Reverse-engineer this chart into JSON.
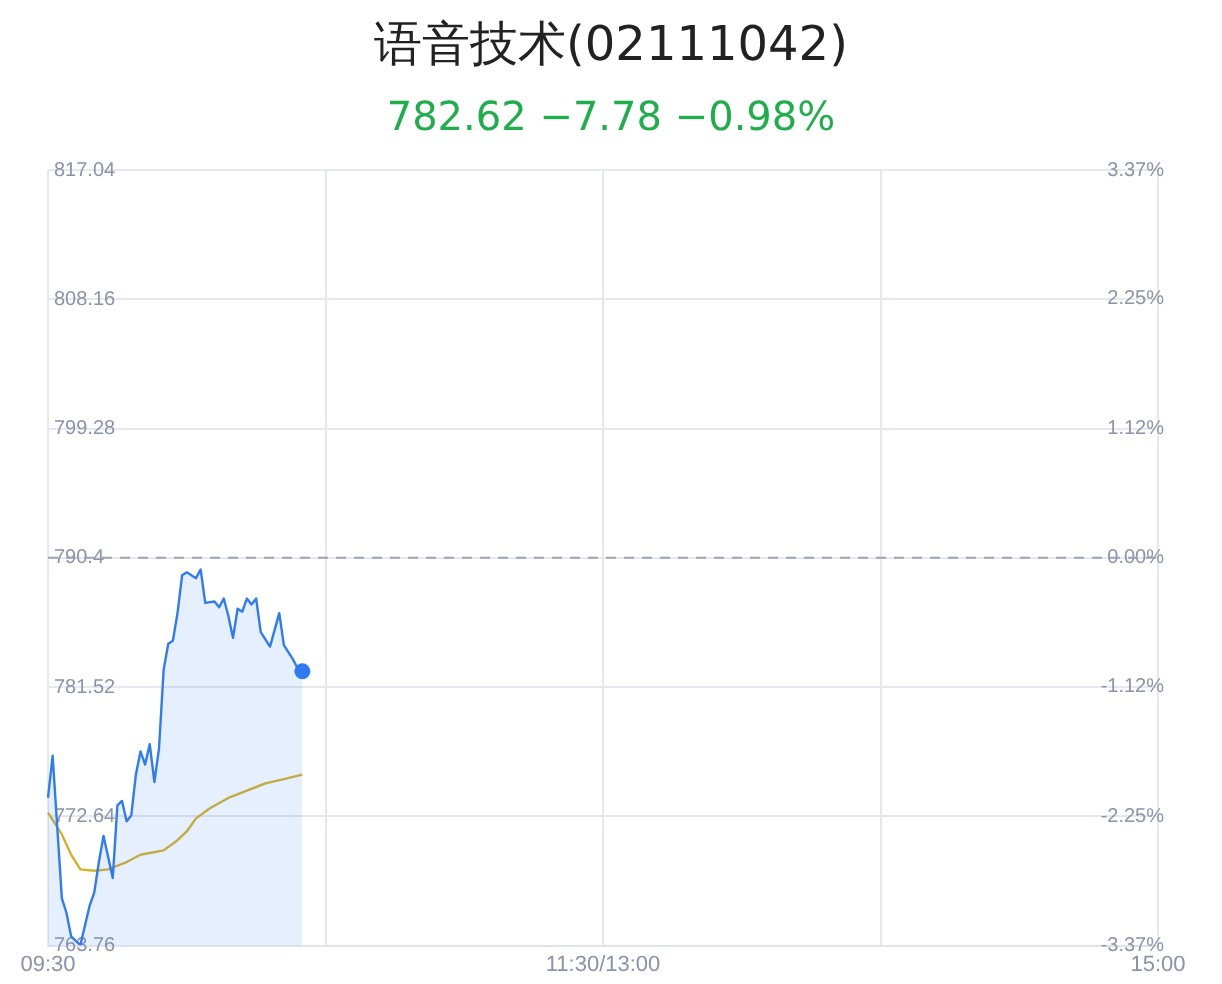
{
  "chart_data": {
    "type": "line",
    "title": "语音技术(02111042)",
    "subtitle": "782.62 −7.78 −0.98%",
    "categories": [
      "09:30",
      null,
      null,
      null,
      null,
      null,
      null,
      null,
      null,
      null,
      null,
      null,
      null,
      null,
      null,
      null,
      null,
      null,
      null,
      null,
      null,
      null,
      null,
      null,
      null,
      null,
      null,
      null,
      null,
      null,
      null,
      null,
      null,
      null,
      null,
      null,
      null,
      null,
      null,
      null,
      null,
      null,
      null,
      null,
      null,
      null,
      null,
      null,
      null,
      null,
      null,
      null,
      null,
      null,
      null,
      null,
      null,
      null,
      null,
      null,
      null,
      null,
      null,
      null,
      null,
      null,
      null,
      null,
      null,
      null,
      null,
      null,
      null,
      null,
      null,
      null,
      null,
      null,
      null,
      null,
      null,
      null,
      null,
      null,
      null,
      null,
      null,
      null,
      null,
      null,
      null,
      null,
      null,
      null,
      null,
      null,
      null,
      null,
      null,
      null,
      null,
      null,
      null,
      null,
      null,
      null,
      null,
      null,
      null,
      null,
      null,
      null,
      null,
      null,
      null,
      null,
      null,
      null,
      null,
      null,
      "11:30/13:00",
      null,
      null,
      null,
      null,
      null,
      null,
      null,
      null,
      null,
      null,
      null,
      null,
      null,
      null,
      null,
      null,
      null,
      null,
      null,
      null,
      null,
      null,
      null,
      null,
      null,
      null,
      null,
      null,
      null,
      null,
      null,
      null,
      null,
      null,
      null,
      null,
      null,
      null,
      null,
      null,
      null,
      null,
      null,
      null,
      null,
      null,
      null,
      null,
      null,
      null,
      null,
      null,
      null,
      null,
      null,
      null,
      null,
      null,
      null,
      null,
      null,
      null,
      null,
      null,
      null,
      null,
      null,
      null,
      null,
      null,
      null,
      null,
      null,
      null,
      null,
      null,
      null,
      null,
      null,
      null,
      null,
      null,
      null,
      null,
      null,
      null,
      null,
      null,
      null,
      null,
      null,
      null,
      null,
      null,
      null,
      null,
      null,
      null,
      null,
      null,
      null,
      null,
      null,
      null,
      null,
      null,
      null,
      null,
      null,
      null,
      null,
      null,
      null,
      null,
      null,
      null,
      null,
      null,
      null,
      "15:00"
    ],
    "ylim": [
      763.76,
      817.04
    ],
    "yticks": [
      763.76,
      772.64,
      781.52,
      790.4,
      799.28,
      808.16,
      817.04
    ],
    "y2lim": [
      -3.37,
      3.37
    ],
    "y2ticks": [
      {
        "value": -3.37,
        "label": "-3.37%"
      },
      {
        "value": -2.25,
        "label": "-2.25%"
      },
      {
        "value": -1.12,
        "label": "-1.12%"
      },
      {
        "value": 0,
        "label": "0.00%"
      },
      {
        "value": 1.12,
        "label": "1.12%"
      },
      {
        "value": 2.25,
        "label": "2.25%"
      },
      {
        "value": 3.37,
        "label": "3.37%"
      }
    ],
    "grid": true,
    "ref_lines": [
      {
        "axis": "y",
        "value": 790.4,
        "color": "#9aa3b8",
        "line_style": "dashed"
      }
    ],
    "series": [
      {
        "type": "area",
        "color": "#2f7bf5",
        "values": [
          773.9,
          776.8,
          null,
          767.0,
          766.0,
          764.4,
          null,
          763.8,
          null,
          766.5,
          767.4,
          769.5,
          771.3,
          null,
          768.4,
          773.4,
          773.7,
          772.3,
          772.7,
          775.5,
          777.1,
          776.2,
          777.6,
          775.0,
          777.3,
          782.7,
          784.5,
          784.7,
          786.6,
          789.2,
          789.4,
          null,
          789.0,
          789.6,
          787.3,
          null,
          787.4,
          787.0,
          787.6,
          786.4,
          784.9,
          786.9,
          786.7,
          787.6,
          787.2,
          787.6,
          785.3,
          null,
          784.3,
          null,
          786.6,
          784.4,
          null,
          783.4,
          782.8,
          782.6,
          null,
          null,
          null,
          null,
          null,
          null,
          null,
          null,
          null,
          null,
          null,
          null,
          null,
          null,
          null,
          null,
          null,
          null,
          null,
          null,
          null,
          null,
          null,
          null,
          null,
          null,
          null,
          null,
          null,
          null,
          null,
          null,
          null,
          null,
          null,
          null,
          null,
          null,
          null,
          null,
          null,
          null,
          null,
          null,
          null,
          null,
          null,
          null,
          null,
          null,
          null,
          null,
          null,
          null,
          null,
          null,
          null,
          null,
          null,
          null,
          null,
          null,
          null,
          null,
          null,
          null,
          null,
          null,
          null,
          null,
          null,
          null,
          null,
          null,
          null,
          null,
          null,
          null,
          null,
          null,
          null,
          null,
          null,
          null,
          null,
          null,
          null,
          null,
          null,
          null,
          null,
          null,
          null,
          null,
          null,
          null,
          null,
          null,
          null,
          null,
          null,
          null,
          null,
          null,
          null,
          null,
          null,
          null,
          null,
          null,
          null,
          null,
          null,
          null,
          null,
          null,
          null,
          null,
          null,
          null,
          null,
          null,
          null,
          null,
          null,
          null,
          null,
          null,
          null,
          null,
          null,
          null,
          null,
          null,
          null,
          null,
          null,
          null,
          null,
          null,
          null,
          null,
          null,
          null,
          null,
          null,
          null,
          null,
          null,
          null,
          null,
          null,
          null,
          null,
          null,
          null,
          null,
          null,
          null,
          null,
          null,
          null,
          null,
          null,
          null,
          null,
          null,
          null,
          null,
          null,
          null,
          null,
          null,
          null,
          null,
          null,
          null,
          null,
          null,
          null,
          null,
          null,
          null,
          null,
          null
        ]
      },
      {
        "type": "line",
        "color": "#d4b328",
        "values": [
          772.9,
          null,
          null,
          771.4,
          null,
          770.0,
          null,
          769.0,
          null,
          null,
          768.9,
          null,
          null,
          769.0,
          null,
          null,
          null,
          769.5,
          null,
          null,
          770.0,
          null,
          null,
          null,
          null,
          770.3,
          null,
          null,
          771.0,
          null,
          771.6,
          null,
          772.5,
          null,
          null,
          773.2,
          null,
          null,
          null,
          773.9,
          null,
          null,
          null,
          774.4,
          null,
          null,
          null,
          774.9,
          null,
          null,
          null,
          775.2,
          null,
          null,
          null,
          775.5,
          null,
          null,
          null,
          null,
          null,
          null,
          null,
          null,
          null,
          null,
          null,
          null,
          null,
          null,
          null,
          null,
          null,
          null,
          null,
          null,
          null,
          null,
          null,
          null,
          null,
          null,
          null,
          null,
          null,
          null,
          null,
          null,
          null,
          null,
          null,
          null,
          null,
          null,
          null,
          null,
          null,
          null,
          null,
          null,
          null,
          null,
          null,
          null,
          null,
          null,
          null,
          null,
          null,
          null,
          null,
          null,
          null,
          null,
          null,
          null,
          null,
          null,
          null,
          null,
          null,
          null,
          null,
          null,
          null,
          null,
          null,
          null,
          null,
          null,
          null,
          null,
          null,
          null,
          null,
          null,
          null,
          null,
          null,
          null,
          null,
          null,
          null,
          null,
          null,
          null,
          null,
          null,
          null,
          null,
          null,
          null,
          null,
          null,
          null,
          null,
          null,
          null,
          null,
          null,
          null,
          null,
          null,
          null,
          null,
          null,
          null,
          null,
          null,
          null,
          null,
          null,
          null,
          null,
          null,
          null,
          null,
          null,
          null,
          null,
          null,
          null,
          null,
          null,
          null,
          null,
          null,
          null,
          null,
          null,
          null,
          null,
          null,
          null,
          null,
          null,
          null,
          null,
          null,
          null,
          null,
          null,
          null,
          null,
          null,
          null,
          null,
          null,
          null,
          null,
          null,
          null,
          null,
          null,
          null,
          null,
          null,
          null,
          null,
          null,
          null,
          null,
          null,
          null,
          null,
          null,
          null,
          null,
          null,
          null,
          null,
          null,
          null,
          null,
          null,
          null,
          null,
          null,
          null,
          null,
          null
        ]
      }
    ]
  }
}
